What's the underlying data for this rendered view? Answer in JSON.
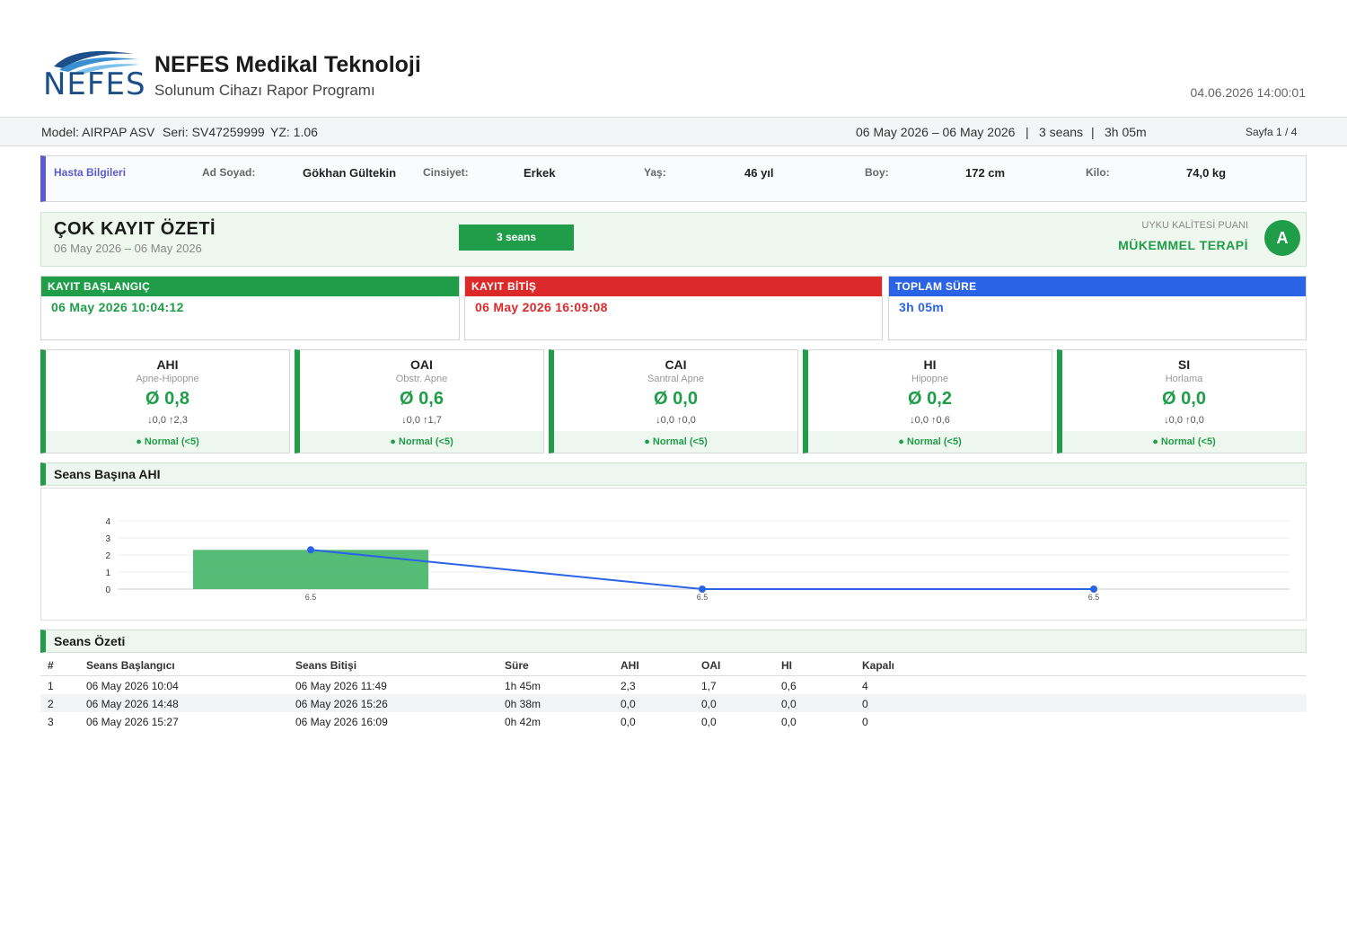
{
  "header": {
    "logo_text": "NEFES",
    "company": "NEFES Medikal Teknoloji",
    "program": "Solunum Cihazı Rapor Programı",
    "print_datetime": "04.06.2026  14:00:01"
  },
  "infobar": {
    "model": "Model: AIRPAP ASV",
    "serial": "Seri: SV47259999",
    "firmware": "YZ: 1.06",
    "range": "06 May 2026  –  06 May 2026",
    "sep1": "|",
    "sessions": "3 seans",
    "sep2": "|",
    "duration": "3h 05m",
    "page": "Sayfa 1 / 4"
  },
  "patient": {
    "title": "Hasta Bilgileri",
    "name_label": "Ad Soyad:",
    "name": "Gökhan Gültekin",
    "gender_label": "Cinsiyet:",
    "gender": "Erkek",
    "age_label": "Yaş:",
    "age": "46 yıl",
    "height_label": "Boy:",
    "height": "172 cm",
    "weight_label": "Kilo:",
    "weight": "74,0 kg"
  },
  "summary": {
    "title": "ÇOK KAYIT ÖZETİ",
    "date_range": "06 May 2026  –  06 May 2026",
    "sessions_badge": "3 seans",
    "sleep_quality_label": "UYKU KALİTESİ PUANI",
    "sleep_quality_value": "MÜKEMMEL TERAPİ",
    "grade": "A"
  },
  "times": {
    "start_label": "KAYIT BAŞLANGIÇ",
    "start_value": "06 May 2026  10:04:12",
    "end_label": "KAYIT BİTİŞ",
    "end_value": "06 May 2026  16:09:08",
    "total_label": "TOPLAM SÜRE",
    "total_value": "3h 05m",
    "colors": {
      "start": "#1f9d48",
      "end": "#dc2a2a",
      "total": "#2b63e6"
    }
  },
  "metrics": [
    {
      "name": "AHI",
      "sub": "Apne-Hipopne",
      "value": "Ø 0,8",
      "range": "↓0,0  ↑2,3",
      "status": "● Normal (<5)"
    },
    {
      "name": "OAI",
      "sub": "Obstr. Apne",
      "value": "Ø 0,6",
      "range": "↓0,0  ↑1,7",
      "status": "● Normal (<5)"
    },
    {
      "name": "CAI",
      "sub": "Santral Apne",
      "value": "Ø 0,0",
      "range": "↓0,0  ↑0,0",
      "status": "● Normal (<5)"
    },
    {
      "name": "HI",
      "sub": "Hipopne",
      "value": "Ø 0,2",
      "range": "↓0,0  ↑0,6",
      "status": "● Normal (<5)"
    },
    {
      "name": "SI",
      "sub": "Horlama",
      "value": "Ø 0,0",
      "range": "↓0,0  ↑0,0",
      "status": "● Normal (<5)"
    }
  ],
  "sections": {
    "chart_title": "Seans Başına AHI",
    "table_title": "Seans Özeti"
  },
  "chart_data": {
    "type": "bar",
    "title": "Seans Başına AHI",
    "categories": [
      "6.5",
      "6.5",
      "6.5"
    ],
    "series": [
      {
        "type": "bar",
        "values": [
          2.3,
          0.0,
          0.0
        ],
        "color": "#4cb86f"
      },
      {
        "type": "line",
        "values": [
          2.3,
          0.0,
          0.0
        ],
        "color": "#2b63e6"
      }
    ],
    "yticks": [
      0,
      1,
      2,
      3,
      4
    ],
    "ylim": [
      0,
      4
    ],
    "grid": true
  },
  "table": {
    "headers": [
      "#",
      "Seans Başlangıcı",
      "Seans Bitişi",
      "Süre",
      "AHI",
      "OAI",
      "HI",
      "Kapalı"
    ],
    "rows": [
      [
        "1",
        "06 May 2026  10:04",
        "06 May 2026  11:49",
        "1h 45m",
        "2,3",
        "1,7",
        "0,6",
        "4"
      ],
      [
        "2",
        "06 May 2026  14:48",
        "06 May 2026  15:26",
        "0h 38m",
        "0,0",
        "0,0",
        "0,0",
        "0"
      ],
      [
        "3",
        "06 May 2026  15:27",
        "06 May 2026  16:09",
        "0h 42m",
        "0,0",
        "0,0",
        "0,0",
        "0"
      ]
    ]
  }
}
